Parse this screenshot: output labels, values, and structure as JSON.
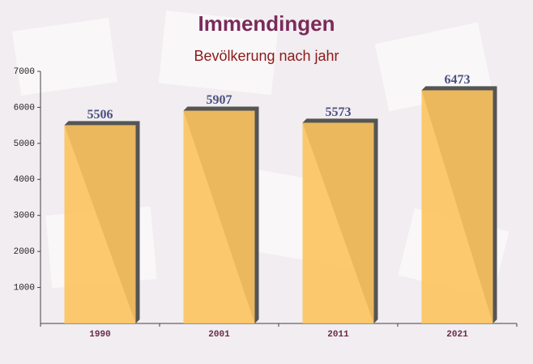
{
  "chart_data": {
    "type": "bar",
    "title": "Immendingen",
    "subtitle": "Bevölkerung nach jahr",
    "categories": [
      "1990",
      "2001",
      "2011",
      "2021"
    ],
    "values": [
      5506,
      5907,
      5573,
      6473
    ],
    "color": "#fcc35e",
    "ylim": [
      0,
      7000
    ],
    "yticks": [
      1000,
      2000,
      3000,
      4000,
      5000,
      6000,
      7000
    ]
  }
}
